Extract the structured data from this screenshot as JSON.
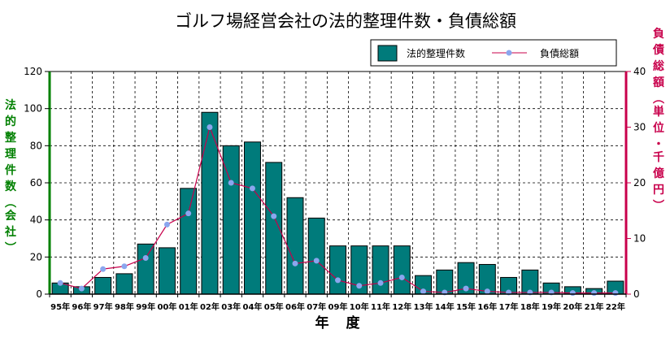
{
  "chart_data": {
    "type": "bar",
    "title": "ゴルフ場経営会社の法的整理件数・負債総額",
    "xlabel": "年　度",
    "ylabel": "法的整理件数（会社）",
    "y2label": "負債総額（単位・千億円）",
    "categories": [
      "95年",
      "96年",
      "97年",
      "98年",
      "99年",
      "00年",
      "01年",
      "02年",
      "03年",
      "04年",
      "05年",
      "06年",
      "07年",
      "09年",
      "10年",
      "11年",
      "12年",
      "13年",
      "14年",
      "15年",
      "16年",
      "17年",
      "18年",
      "19年",
      "20年",
      "21年",
      "22年"
    ],
    "ylim": [
      0,
      120
    ],
    "yticks": [
      0,
      20,
      40,
      60,
      80,
      100,
      120
    ],
    "y2lim": [
      0,
      40
    ],
    "y2ticks": [
      0,
      10,
      20,
      30,
      40
    ],
    "grid": true,
    "legend_position": "top-right",
    "series": [
      {
        "name": "法的整理件数",
        "type": "bar",
        "axis": "left",
        "color": "#007b7b",
        "values": [
          6,
          4,
          9,
          11,
          27,
          25,
          57,
          98,
          80,
          82,
          71,
          52,
          41,
          26,
          26,
          26,
          26,
          10,
          13,
          17,
          16,
          9,
          13,
          6,
          4,
          3,
          7
        ]
      },
      {
        "name": "負債総額",
        "type": "line",
        "axis": "right",
        "color": "#c8004b",
        "marker_color": "#8aa6ee",
        "values": [
          2,
          1,
          4.5,
          5,
          6.5,
          12.5,
          14.5,
          30,
          20,
          19,
          14,
          5.5,
          6,
          2.5,
          1.5,
          2,
          3,
          0.5,
          0.3,
          1,
          0.5,
          0.3,
          0.3,
          0.3,
          0.2,
          0.2,
          0.2
        ]
      }
    ],
    "colors": {
      "left_axis": "#008000",
      "right_axis": "#c8004b"
    }
  }
}
